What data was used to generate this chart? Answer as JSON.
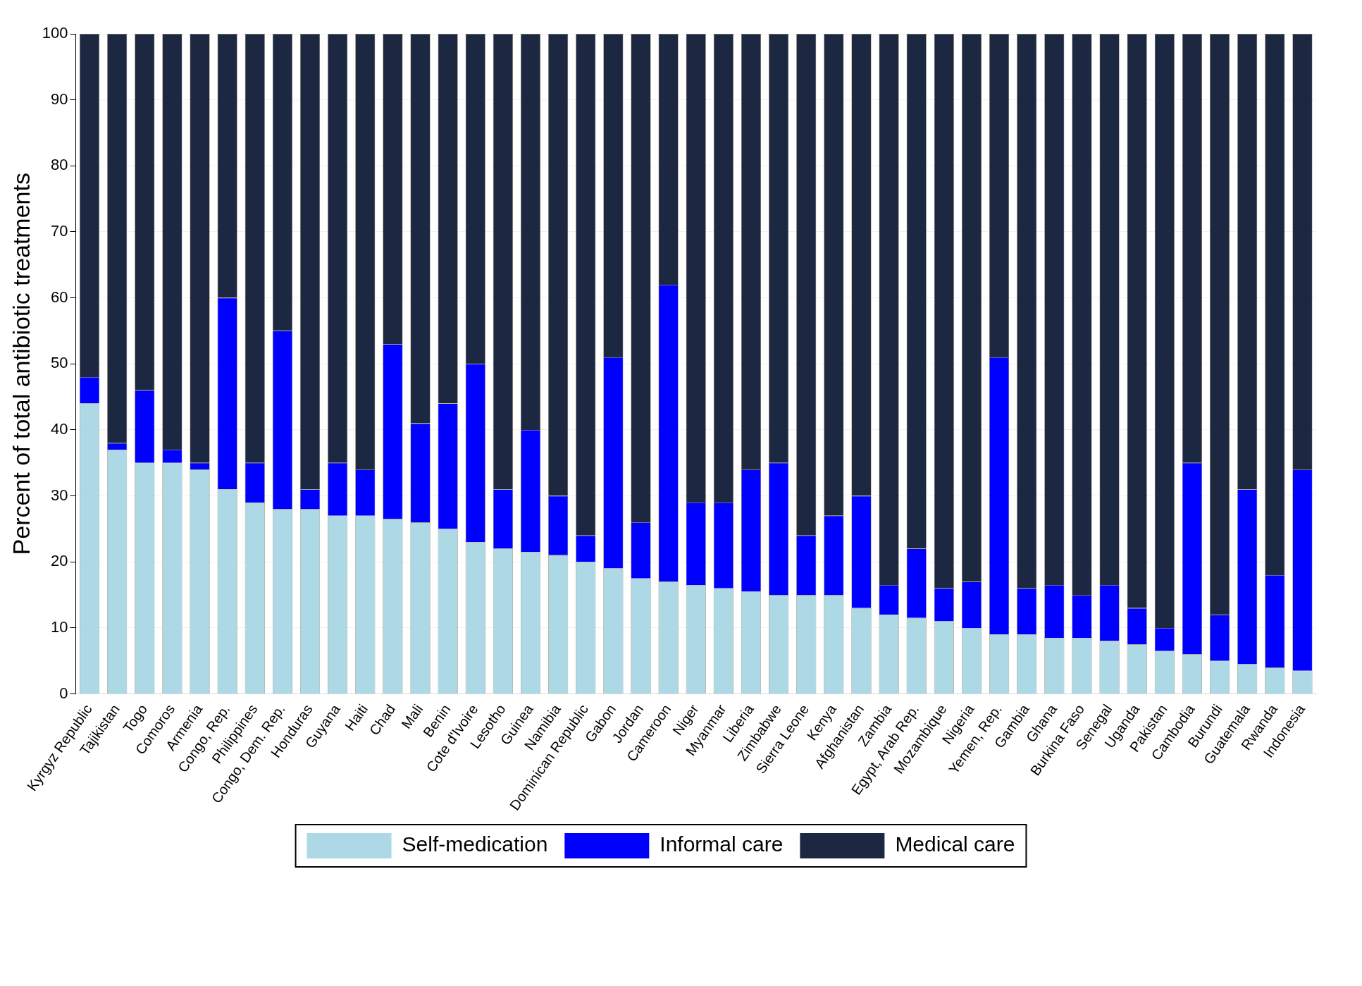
{
  "chart_data": {
    "type": "bar",
    "stacked": true,
    "ylabel": "Percent of total antibiotic treatments",
    "categories": [
      "Kyrgyz Republic",
      "Tajikistan",
      "Togo",
      "Comoros",
      "Armenia",
      "Congo, Rep.",
      "Philippines",
      "Congo, Dem. Rep.",
      "Honduras",
      "Guyana",
      "Haiti",
      "Chad",
      "Mali",
      "Benin",
      "Cote d'Ivoire",
      "Lesotho",
      "Guinea",
      "Namibia",
      "Dominican Republic",
      "Gabon",
      "Jordan",
      "Cameroon",
      "Niger",
      "Myanmar",
      "Liberia",
      "Zimbabwe",
      "Sierra Leone",
      "Kenya",
      "Afghanistan",
      "Zambia",
      "Egypt, Arab Rep.",
      "Mozambique",
      "Nigeria",
      "Yemen, Rep.",
      "Gambia",
      "Ghana",
      "Burkina Faso",
      "Senegal",
      "Uganda",
      "Pakistan",
      "Cambodia",
      "Burundi",
      "Guatemala",
      "Rwanda",
      "Indonesia"
    ],
    "series": [
      {
        "name": "Self-medication",
        "color": "#add8e6",
        "values": [
          44,
          37,
          35,
          35,
          34,
          31,
          29,
          28,
          28,
          27,
          27,
          26.5,
          26,
          25,
          23,
          22,
          21.5,
          21,
          20,
          19,
          17.5,
          17,
          16.5,
          16,
          15.5,
          15,
          15,
          15,
          13,
          12,
          11.5,
          11,
          10,
          9,
          9,
          8.5,
          8.5,
          8,
          7.5,
          6.5,
          6,
          5,
          4.5,
          4,
          3.5
        ]
      },
      {
        "name": "Informal care",
        "color": "#0000ff",
        "values": [
          4,
          1,
          11,
          2,
          1,
          29,
          6,
          27,
          3,
          8,
          7,
          26.5,
          15,
          19,
          27,
          9,
          18.5,
          9,
          4,
          32,
          8.5,
          45,
          12.5,
          13,
          18.5,
          20,
          9,
          12,
          17,
          4.5,
          10.5,
          5,
          7,
          42,
          7,
          8,
          6.5,
          8.5,
          5.5,
          3.5,
          29,
          7,
          26.5,
          14,
          30.5
        ]
      },
      {
        "name": "Medical care",
        "color": "#1c2841",
        "values": [
          52,
          62,
          54,
          63,
          65,
          40,
          65,
          45,
          69,
          65,
          66,
          47,
          59,
          56,
          50,
          69,
          60,
          70,
          76,
          49,
          74,
          38,
          71,
          71,
          66,
          65,
          76,
          73,
          70,
          83.5,
          78,
          84,
          83,
          49,
          84,
          83.5,
          85,
          83.5,
          87,
          90,
          65,
          88,
          69,
          82,
          66
        ]
      }
    ],
    "ylim": [
      0,
      100
    ],
    "yticks": [
      0,
      10,
      20,
      30,
      40,
      50,
      60,
      70,
      80,
      90,
      100
    ],
    "grid": "y",
    "legend": "bottom"
  }
}
